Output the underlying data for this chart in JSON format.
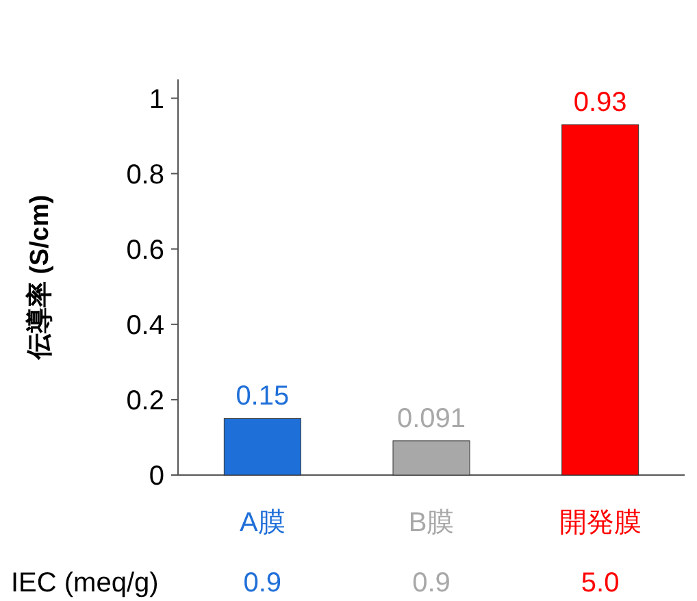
{
  "chart_data": {
    "type": "bar",
    "ylabel": "伝導率 (S/cm)",
    "categories": [
      "A膜",
      "B膜",
      "開発膜"
    ],
    "values": [
      0.15,
      0.091,
      0.93
    ],
    "colors": [
      "#1f6fd8",
      "#a8a8a8",
      "#ff0000"
    ],
    "ylim": [
      0,
      1.05
    ],
    "yticks": [
      0,
      0.2,
      0.4,
      0.6,
      0.8,
      1
    ],
    "data_labels": true,
    "grid": false,
    "annotations": [
      "IEC (meq/g)",
      "0.9",
      "0.9",
      "5.0"
    ]
  }
}
